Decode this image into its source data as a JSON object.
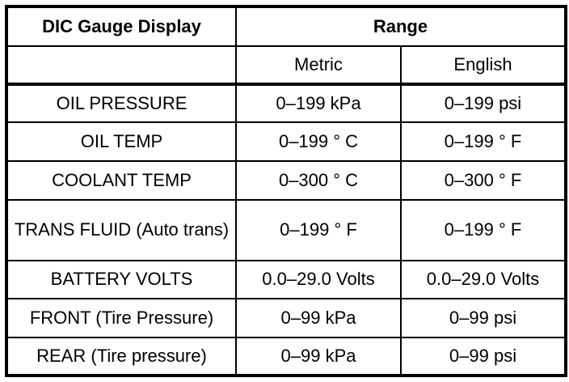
{
  "table": {
    "header": {
      "display_col": "DIC Gauge Display",
      "range_col": "Range"
    },
    "subheader": {
      "metric": "Metric",
      "english": "English"
    },
    "rows": [
      {
        "display": "OIL PRESSURE",
        "metric": "0–199 kPa",
        "english": "0–199 psi"
      },
      {
        "display": "OIL TEMP",
        "metric": "0–199 ° C",
        "english": "0–199 ° F"
      },
      {
        "display": "COOLANT TEMP",
        "metric": "0–300 ° C",
        "english": "0–300 ° F"
      },
      {
        "display": "TRANS FLUID (Auto trans)",
        "metric": "0–199 ° F",
        "english": "0–199 ° F"
      },
      {
        "display": "BATTERY VOLTS",
        "metric": "0.0–29.0 Volts",
        "english": "0.0–29.0 Volts"
      },
      {
        "display": "FRONT (Tire Pressure)",
        "metric": "0–99 kPa",
        "english": "0–99 psi"
      },
      {
        "display": "REAR (Tire pressure)",
        "metric": "0–99 kPa",
        "english": "0–99 psi"
      }
    ]
  }
}
